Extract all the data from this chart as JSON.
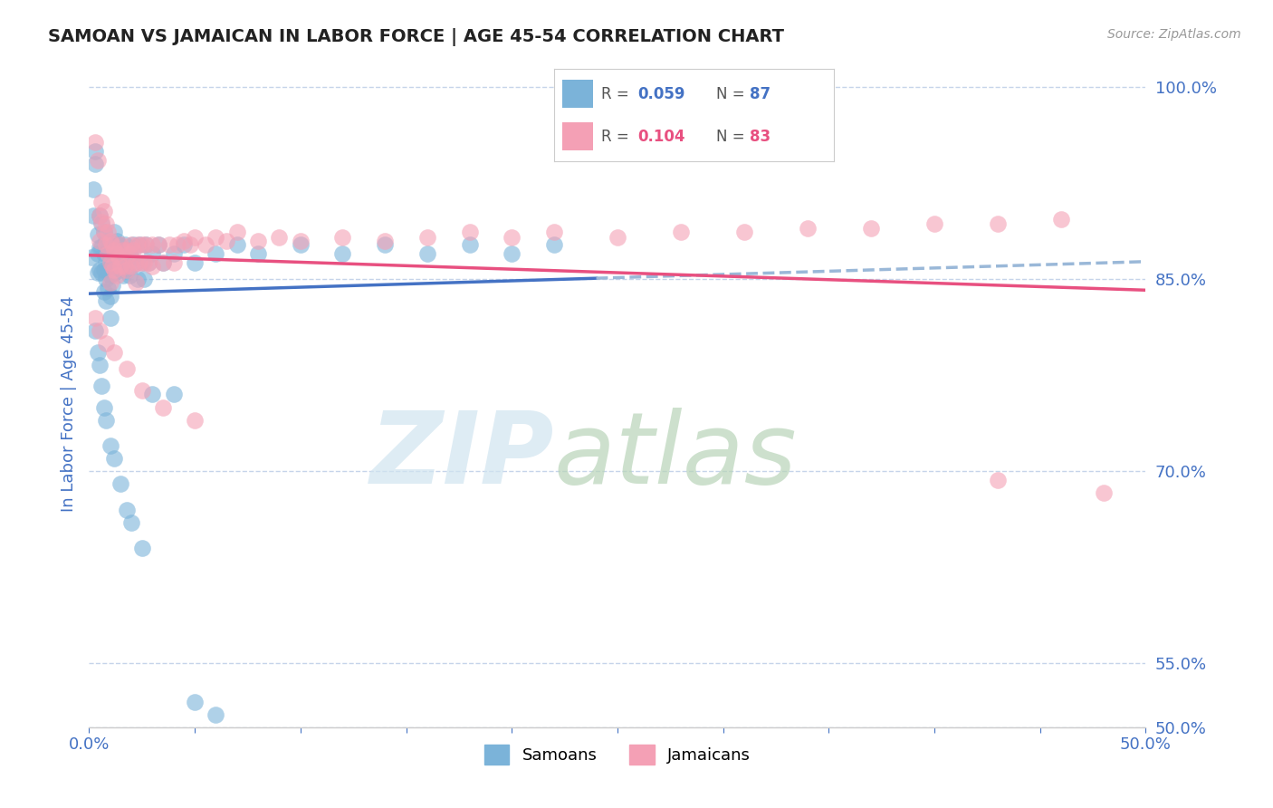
{
  "title": "SAMOAN VS JAMAICAN IN LABOR FORCE | AGE 45-54 CORRELATION CHART",
  "source_text": "Source: ZipAtlas.com",
  "ylabel": "In Labor Force | Age 45-54",
  "xlim": [
    0.0,
    0.5
  ],
  "ylim": [
    0.5,
    1.005
  ],
  "xtick_vals": [
    0.0,
    0.05,
    0.1,
    0.15,
    0.2,
    0.25,
    0.3,
    0.35,
    0.4,
    0.45,
    0.5
  ],
  "xticklabels_show": {
    "0.0": "0.0%",
    "0.50": "50.0%"
  },
  "ytick_vals": [
    0.5,
    0.55,
    0.7,
    0.85,
    1.0
  ],
  "yticklabels": [
    "50.0%",
    "55.0%",
    "70.0%",
    "85.0%",
    "100.0%"
  ],
  "samoan_color": "#7bb3d9",
  "jamaican_color": "#f4a0b5",
  "samoan_line_color": "#4472c4",
  "jamaican_line_color": "#e85080",
  "samoan_line_dashed_color": "#9ab8d8",
  "R_samoan": 0.059,
  "N_samoan": 87,
  "R_jamaican": 0.104,
  "N_jamaican": 83,
  "background_color": "#ffffff",
  "grid_color": "#c0d0e8",
  "axis_label_color": "#4472c4",
  "tick_color": "#4472c4",
  "samoan_points": [
    [
      0.001,
      0.867
    ],
    [
      0.002,
      0.9
    ],
    [
      0.002,
      0.92
    ],
    [
      0.003,
      0.95
    ],
    [
      0.003,
      0.94
    ],
    [
      0.004,
      0.885
    ],
    [
      0.004,
      0.87
    ],
    [
      0.004,
      0.855
    ],
    [
      0.005,
      0.9
    ],
    [
      0.005,
      0.875
    ],
    [
      0.005,
      0.857
    ],
    [
      0.006,
      0.893
    ],
    [
      0.006,
      0.875
    ],
    [
      0.006,
      0.855
    ],
    [
      0.007,
      0.887
    ],
    [
      0.007,
      0.87
    ],
    [
      0.007,
      0.857
    ],
    [
      0.007,
      0.84
    ],
    [
      0.008,
      0.88
    ],
    [
      0.008,
      0.863
    ],
    [
      0.008,
      0.85
    ],
    [
      0.008,
      0.833
    ],
    [
      0.009,
      0.873
    ],
    [
      0.009,
      0.857
    ],
    [
      0.009,
      0.843
    ],
    [
      0.01,
      0.867
    ],
    [
      0.01,
      0.853
    ],
    [
      0.01,
      0.837
    ],
    [
      0.01,
      0.82
    ],
    [
      0.011,
      0.877
    ],
    [
      0.011,
      0.86
    ],
    [
      0.011,
      0.845
    ],
    [
      0.012,
      0.887
    ],
    [
      0.012,
      0.87
    ],
    [
      0.012,
      0.855
    ],
    [
      0.013,
      0.88
    ],
    [
      0.013,
      0.863
    ],
    [
      0.014,
      0.877
    ],
    [
      0.014,
      0.86
    ],
    [
      0.015,
      0.873
    ],
    [
      0.015,
      0.857
    ],
    [
      0.016,
      0.87
    ],
    [
      0.016,
      0.853
    ],
    [
      0.017,
      0.877
    ],
    [
      0.017,
      0.86
    ],
    [
      0.018,
      0.873
    ],
    [
      0.018,
      0.857
    ],
    [
      0.019,
      0.87
    ],
    [
      0.019,
      0.853
    ],
    [
      0.02,
      0.867
    ],
    [
      0.021,
      0.877
    ],
    [
      0.022,
      0.863
    ],
    [
      0.023,
      0.85
    ],
    [
      0.024,
      0.877
    ],
    [
      0.025,
      0.863
    ],
    [
      0.026,
      0.85
    ],
    [
      0.027,
      0.877
    ],
    [
      0.028,
      0.863
    ],
    [
      0.03,
      0.87
    ],
    [
      0.033,
      0.877
    ],
    [
      0.035,
      0.863
    ],
    [
      0.04,
      0.87
    ],
    [
      0.045,
      0.877
    ],
    [
      0.05,
      0.863
    ],
    [
      0.06,
      0.87
    ],
    [
      0.07,
      0.877
    ],
    [
      0.08,
      0.87
    ],
    [
      0.1,
      0.877
    ],
    [
      0.12,
      0.87
    ],
    [
      0.14,
      0.877
    ],
    [
      0.16,
      0.87
    ],
    [
      0.18,
      0.877
    ],
    [
      0.2,
      0.87
    ],
    [
      0.22,
      0.877
    ],
    [
      0.003,
      0.81
    ],
    [
      0.004,
      0.793
    ],
    [
      0.005,
      0.783
    ],
    [
      0.006,
      0.767
    ],
    [
      0.007,
      0.75
    ],
    [
      0.008,
      0.74
    ],
    [
      0.01,
      0.72
    ],
    [
      0.012,
      0.71
    ],
    [
      0.015,
      0.69
    ],
    [
      0.018,
      0.67
    ],
    [
      0.02,
      0.66
    ],
    [
      0.025,
      0.64
    ],
    [
      0.03,
      0.76
    ],
    [
      0.04,
      0.76
    ],
    [
      0.05,
      0.52
    ],
    [
      0.06,
      0.51
    ]
  ],
  "jamaican_points": [
    [
      0.003,
      0.957
    ],
    [
      0.004,
      0.943
    ],
    [
      0.005,
      0.9
    ],
    [
      0.005,
      0.88
    ],
    [
      0.006,
      0.91
    ],
    [
      0.006,
      0.895
    ],
    [
      0.007,
      0.903
    ],
    [
      0.007,
      0.887
    ],
    [
      0.008,
      0.893
    ],
    [
      0.008,
      0.877
    ],
    [
      0.009,
      0.887
    ],
    [
      0.009,
      0.87
    ],
    [
      0.01,
      0.88
    ],
    [
      0.01,
      0.863
    ],
    [
      0.01,
      0.847
    ],
    [
      0.011,
      0.877
    ],
    [
      0.011,
      0.86
    ],
    [
      0.012,
      0.873
    ],
    [
      0.012,
      0.857
    ],
    [
      0.013,
      0.87
    ],
    [
      0.013,
      0.853
    ],
    [
      0.014,
      0.867
    ],
    [
      0.015,
      0.877
    ],
    [
      0.015,
      0.86
    ],
    [
      0.016,
      0.873
    ],
    [
      0.017,
      0.86
    ],
    [
      0.018,
      0.873
    ],
    [
      0.018,
      0.857
    ],
    [
      0.019,
      0.87
    ],
    [
      0.02,
      0.877
    ],
    [
      0.02,
      0.86
    ],
    [
      0.021,
      0.873
    ],
    [
      0.022,
      0.863
    ],
    [
      0.022,
      0.847
    ],
    [
      0.023,
      0.877
    ],
    [
      0.024,
      0.863
    ],
    [
      0.025,
      0.877
    ],
    [
      0.026,
      0.863
    ],
    [
      0.027,
      0.877
    ],
    [
      0.028,
      0.863
    ],
    [
      0.03,
      0.877
    ],
    [
      0.03,
      0.86
    ],
    [
      0.033,
      0.877
    ],
    [
      0.035,
      0.863
    ],
    [
      0.038,
      0.877
    ],
    [
      0.04,
      0.863
    ],
    [
      0.042,
      0.877
    ],
    [
      0.045,
      0.88
    ],
    [
      0.048,
      0.877
    ],
    [
      0.05,
      0.883
    ],
    [
      0.055,
      0.877
    ],
    [
      0.06,
      0.883
    ],
    [
      0.065,
      0.88
    ],
    [
      0.07,
      0.887
    ],
    [
      0.08,
      0.88
    ],
    [
      0.09,
      0.883
    ],
    [
      0.1,
      0.88
    ],
    [
      0.12,
      0.883
    ],
    [
      0.14,
      0.88
    ],
    [
      0.16,
      0.883
    ],
    [
      0.18,
      0.887
    ],
    [
      0.2,
      0.883
    ],
    [
      0.22,
      0.887
    ],
    [
      0.25,
      0.883
    ],
    [
      0.28,
      0.887
    ],
    [
      0.31,
      0.887
    ],
    [
      0.34,
      0.89
    ],
    [
      0.37,
      0.89
    ],
    [
      0.4,
      0.893
    ],
    [
      0.43,
      0.893
    ],
    [
      0.46,
      0.897
    ],
    [
      0.003,
      0.82
    ],
    [
      0.005,
      0.81
    ],
    [
      0.008,
      0.8
    ],
    [
      0.012,
      0.793
    ],
    [
      0.018,
      0.78
    ],
    [
      0.025,
      0.763
    ],
    [
      0.035,
      0.75
    ],
    [
      0.05,
      0.74
    ],
    [
      0.43,
      0.693
    ],
    [
      0.48,
      0.683
    ]
  ],
  "samoan_trend_xmax": 0.24,
  "trend_line_extend_to": 0.5
}
